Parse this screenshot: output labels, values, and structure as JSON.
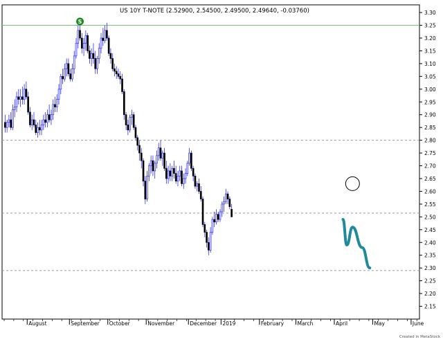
{
  "chart_data": {
    "type": "candlestick",
    "title": "US 10Y T-NOTE (2.52900, 2.54500, 2.49500, 2.49640, -0.03760)",
    "footer": "Created in MetaStock",
    "marker_label": "S",
    "ylim": [
      2.1,
      3.33
    ],
    "yticks": [
      "2.15",
      "2.20",
      "2.25",
      "2.30",
      "2.35",
      "2.40",
      "2.45",
      "2.50",
      "2.55",
      "2.60",
      "2.65",
      "2.70",
      "2.75",
      "2.80",
      "2.85",
      "2.90",
      "2.95",
      "3.00",
      "3.05",
      "3.10",
      "3.15",
      "3.20",
      "3.25",
      "3.30"
    ],
    "xlabels": [
      "August",
      "September",
      "October",
      "November",
      "December",
      "2019",
      "February",
      "March",
      "April",
      "May",
      "June"
    ],
    "xlabel_bar_index": [
      12,
      34,
      54,
      74,
      96,
      113,
      133,
      152,
      172,
      192,
      212
    ],
    "horizontal_lines": [
      {
        "value": 3.25,
        "style": "solid",
        "color": "#7ac47a"
      },
      {
        "value": 2.8,
        "style": "dashed",
        "color": "#999999"
      },
      {
        "value": 2.515,
        "style": "dashed",
        "color": "#999999"
      },
      {
        "value": 2.29,
        "style": "dashed",
        "color": "#999999"
      }
    ],
    "circle": {
      "bar_index": 181,
      "value": 2.63
    },
    "projection": {
      "color": "#1f8a9a",
      "points": [
        [
          176,
          2.49
        ],
        [
          178,
          2.39
        ],
        [
          181,
          2.46
        ],
        [
          186,
          2.38
        ],
        [
          190,
          2.3
        ]
      ]
    },
    "candles": [
      [
        2.87,
        2.9,
        2.83,
        2.85
      ],
      [
        2.85,
        2.88,
        2.83,
        2.87
      ],
      [
        2.87,
        2.9,
        2.85,
        2.88
      ],
      [
        2.88,
        2.91,
        2.84,
        2.85
      ],
      [
        2.85,
        2.94,
        2.84,
        2.92
      ],
      [
        2.92,
        2.96,
        2.89,
        2.93
      ],
      [
        2.93,
        2.99,
        2.91,
        2.97
      ],
      [
        2.97,
        3.0,
        2.94,
        2.96
      ],
      [
        2.96,
        3.0,
        2.93,
        2.97
      ],
      [
        2.97,
        3.01,
        2.94,
        2.96
      ],
      [
        2.96,
        3.02,
        2.94,
        3.0
      ],
      [
        3.0,
        3.03,
        2.96,
        2.97
      ],
      [
        2.97,
        2.99,
        2.9,
        2.91
      ],
      [
        2.91,
        2.93,
        2.85,
        2.86
      ],
      [
        2.86,
        2.9,
        2.84,
        2.88
      ],
      [
        2.88,
        2.91,
        2.85,
        2.86
      ],
      [
        2.86,
        2.88,
        2.82,
        2.83
      ],
      [
        2.83,
        2.87,
        2.81,
        2.85
      ],
      [
        2.85,
        2.88,
        2.82,
        2.84
      ],
      [
        2.84,
        2.88,
        2.82,
        2.86
      ],
      [
        2.86,
        2.9,
        2.84,
        2.88
      ],
      [
        2.88,
        2.91,
        2.85,
        2.87
      ],
      [
        2.87,
        2.92,
        2.85,
        2.9
      ],
      [
        2.9,
        2.94,
        2.87,
        2.88
      ],
      [
        2.88,
        2.92,
        2.86,
        2.9
      ],
      [
        2.9,
        2.96,
        2.88,
        2.94
      ],
      [
        2.94,
        2.97,
        2.91,
        2.93
      ],
      [
        2.93,
        2.98,
        2.91,
        2.96
      ],
      [
        2.96,
        3.02,
        2.94,
        3.0
      ],
      [
        3.0,
        3.06,
        2.98,
        3.05
      ],
      [
        3.05,
        3.08,
        3.02,
        3.04
      ],
      [
        3.04,
        3.1,
        3.03,
        3.08
      ],
      [
        3.08,
        3.12,
        3.05,
        3.1
      ],
      [
        3.1,
        3.12,
        3.05,
        3.06
      ],
      [
        3.06,
        3.08,
        3.03,
        3.04
      ],
      [
        3.04,
        3.1,
        3.03,
        3.08
      ],
      [
        3.08,
        3.15,
        3.06,
        3.13
      ],
      [
        3.13,
        3.2,
        3.12,
        3.18
      ],
      [
        3.18,
        3.25,
        3.16,
        3.23
      ],
      [
        3.23,
        3.26,
        3.19,
        3.2
      ],
      [
        3.2,
        3.22,
        3.14,
        3.16
      ],
      [
        3.16,
        3.2,
        3.13,
        3.18
      ],
      [
        3.18,
        3.23,
        3.15,
        3.21
      ],
      [
        3.21,
        3.22,
        3.14,
        3.15
      ],
      [
        3.15,
        3.17,
        3.1,
        3.12
      ],
      [
        3.12,
        3.16,
        3.09,
        3.14
      ],
      [
        3.14,
        3.18,
        3.1,
        3.12
      ],
      [
        3.12,
        3.15,
        3.06,
        3.08
      ],
      [
        3.08,
        3.13,
        3.06,
        3.12
      ],
      [
        3.12,
        3.18,
        3.1,
        3.16
      ],
      [
        3.16,
        3.22,
        3.14,
        3.2
      ],
      [
        3.2,
        3.24,
        3.17,
        3.19
      ],
      [
        3.19,
        3.25,
        3.18,
        3.23
      ],
      [
        3.23,
        3.26,
        3.19,
        3.2
      ],
      [
        3.2,
        3.21,
        3.13,
        3.14
      ],
      [
        3.14,
        3.16,
        3.1,
        3.12
      ],
      [
        3.12,
        3.14,
        3.07,
        3.08
      ],
      [
        3.08,
        3.1,
        3.05,
        3.07
      ],
      [
        3.07,
        3.09,
        3.04,
        3.06
      ],
      [
        3.06,
        3.08,
        3.04,
        3.05
      ],
      [
        3.05,
        3.07,
        3.02,
        3.04
      ],
      [
        3.04,
        3.06,
        2.98,
        2.99
      ],
      [
        2.99,
        3.0,
        2.88,
        2.9
      ],
      [
        2.9,
        2.91,
        2.84,
        2.86
      ],
      [
        2.86,
        2.88,
        2.82,
        2.84
      ],
      [
        2.84,
        2.9,
        2.83,
        2.89
      ],
      [
        2.89,
        2.92,
        2.86,
        2.9
      ],
      [
        2.9,
        2.91,
        2.84,
        2.85
      ],
      [
        2.85,
        2.86,
        2.8,
        2.81
      ],
      [
        2.81,
        2.82,
        2.76,
        2.78
      ],
      [
        2.78,
        2.8,
        2.72,
        2.75
      ],
      [
        2.75,
        2.77,
        2.69,
        2.72
      ],
      [
        2.72,
        2.73,
        2.62,
        2.64
      ],
      [
        2.64,
        2.66,
        2.55,
        2.57
      ],
      [
        2.57,
        2.68,
        2.56,
        2.66
      ],
      [
        2.66,
        2.71,
        2.64,
        2.7
      ],
      [
        2.7,
        2.74,
        2.67,
        2.72
      ],
      [
        2.72,
        2.74,
        2.66,
        2.68
      ],
      [
        2.68,
        2.72,
        2.65,
        2.71
      ],
      [
        2.71,
        2.76,
        2.69,
        2.74
      ],
      [
        2.74,
        2.79,
        2.72,
        2.77
      ],
      [
        2.77,
        2.8,
        2.72,
        2.73
      ],
      [
        2.73,
        2.76,
        2.7,
        2.75
      ],
      [
        2.75,
        2.77,
        2.68,
        2.69
      ],
      [
        2.69,
        2.72,
        2.63,
        2.65
      ],
      [
        2.65,
        2.7,
        2.63,
        2.68
      ],
      [
        2.68,
        2.71,
        2.64,
        2.66
      ],
      [
        2.66,
        2.7,
        2.64,
        2.69
      ],
      [
        2.69,
        2.72,
        2.65,
        2.67
      ],
      [
        2.67,
        2.7,
        2.63,
        2.64
      ],
      [
        2.64,
        2.68,
        2.62,
        2.66
      ],
      [
        2.66,
        2.7,
        2.64,
        2.68
      ],
      [
        2.68,
        2.7,
        2.62,
        2.63
      ],
      [
        2.63,
        2.67,
        2.61,
        2.65
      ],
      [
        2.65,
        2.69,
        2.63,
        2.67
      ],
      [
        2.67,
        2.72,
        2.66,
        2.71
      ],
      [
        2.71,
        2.77,
        2.7,
        2.75
      ],
      [
        2.75,
        2.76,
        2.68,
        2.69
      ],
      [
        2.69,
        2.7,
        2.64,
        2.66
      ],
      [
        2.66,
        2.67,
        2.61,
        2.62
      ],
      [
        2.62,
        2.64,
        2.6,
        2.63
      ],
      [
        2.63,
        2.65,
        2.59,
        2.6
      ],
      [
        2.6,
        2.62,
        2.56,
        2.57
      ],
      [
        2.57,
        2.58,
        2.46,
        2.47
      ],
      [
        2.47,
        2.48,
        2.42,
        2.44
      ],
      [
        2.44,
        2.45,
        2.38,
        2.4
      ],
      [
        2.4,
        2.42,
        2.35,
        2.37
      ],
      [
        2.37,
        2.46,
        2.36,
        2.44
      ],
      [
        2.44,
        2.5,
        2.43,
        2.49
      ],
      [
        2.49,
        2.52,
        2.46,
        2.48
      ],
      [
        2.48,
        2.53,
        2.47,
        2.51
      ],
      [
        2.51,
        2.52,
        2.48,
        2.49
      ],
      [
        2.49,
        2.53,
        2.48,
        2.52
      ],
      [
        2.52,
        2.56,
        2.5,
        2.55
      ],
      [
        2.55,
        2.58,
        2.52,
        2.56
      ],
      [
        2.56,
        2.61,
        2.55,
        2.59
      ],
      [
        2.59,
        2.6,
        2.55,
        2.57
      ],
      [
        2.57,
        2.58,
        2.53,
        2.54
      ],
      [
        2.53,
        2.55,
        2.5,
        2.5
      ]
    ]
  }
}
